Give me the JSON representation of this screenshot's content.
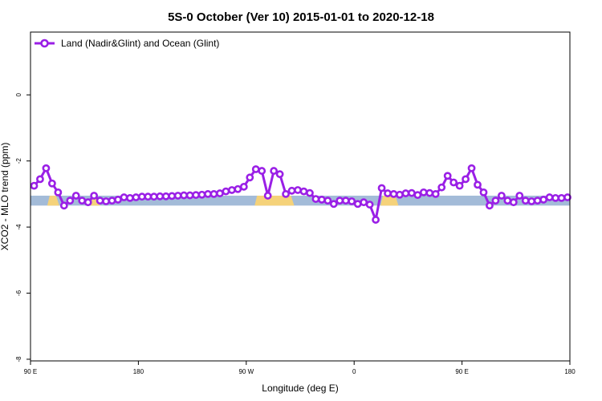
{
  "chart_data": {
    "type": "line",
    "title": "5S-0 October (Ver 10)   2015-01-01 to 2020-12-18",
    "xlabel": "Longitude (deg E)",
    "ylabel": "XCO2 - MLO trend (ppm)",
    "xlim": [
      90,
      540
    ],
    "ylim": [
      -8.05,
      1.9
    ],
    "x_ticks": [
      {
        "value": 90,
        "label": "90 E"
      },
      {
        "value": 180,
        "label": "180"
      },
      {
        "value": 270,
        "label": "90 W"
      },
      {
        "value": 360,
        "label": "0"
      },
      {
        "value": 450,
        "label": "90 E"
      },
      {
        "value": 540,
        "label": "180"
      }
    ],
    "y_ticks": [
      0,
      -2,
      -4,
      -6,
      -8
    ],
    "grid": false,
    "legend_position": "top-left",
    "colors": {
      "series": "#9a1fe6",
      "ocean": "#a3bbd8",
      "land": "#f5d27a"
    },
    "surface_strip": {
      "y_top": -3.05,
      "y_bottom": -3.35,
      "land_x_ranges": [
        [
          104,
          114
        ],
        [
          140,
          148
        ],
        [
          277,
          310
        ],
        [
          382,
          397
        ]
      ]
    },
    "series": [
      {
        "name": "Land (Nadir&Glint) and Ocean (Glint)",
        "x": [
          93,
          98,
          103,
          108,
          113,
          118,
          123,
          128,
          133,
          138,
          143,
          148,
          153,
          158,
          163,
          168,
          173,
          178,
          183,
          188,
          193,
          198,
          203,
          208,
          213,
          218,
          223,
          228,
          233,
          238,
          243,
          248,
          253,
          258,
          263,
          268,
          273,
          278,
          283,
          288,
          293,
          298,
          303,
          308,
          313,
          318,
          323,
          328,
          333,
          338,
          343,
          348,
          353,
          358,
          363,
          368,
          373,
          378,
          383,
          388,
          393,
          398,
          403,
          408,
          413,
          418,
          423,
          428,
          433,
          438,
          443,
          448,
          453,
          458,
          463,
          468,
          473,
          478,
          483,
          488,
          493,
          498,
          503,
          508,
          513,
          518,
          523,
          528,
          533,
          538
        ],
        "values": [
          -2.75,
          -2.55,
          -2.22,
          -2.68,
          -2.95,
          -3.35,
          -3.2,
          -3.05,
          -3.2,
          -3.25,
          -3.05,
          -3.2,
          -3.22,
          -3.2,
          -3.17,
          -3.1,
          -3.12,
          -3.1,
          -3.08,
          -3.08,
          -3.08,
          -3.07,
          -3.07,
          -3.06,
          -3.05,
          -3.04,
          -3.04,
          -3.03,
          -3.02,
          -3.0,
          -3.0,
          -2.98,
          -2.92,
          -2.88,
          -2.85,
          -2.78,
          -2.5,
          -2.25,
          -2.3,
          -3.05,
          -2.3,
          -2.4,
          -3.0,
          -2.9,
          -2.88,
          -2.92,
          -2.97,
          -3.15,
          -3.17,
          -3.2,
          -3.3,
          -3.2,
          -3.2,
          -3.22,
          -3.3,
          -3.25,
          -3.32,
          -3.78,
          -2.82,
          -2.98,
          -3.0,
          -3.02,
          -2.98,
          -2.97,
          -3.03,
          -2.95,
          -2.97,
          -3.0,
          -2.8,
          -2.45,
          -2.65,
          -2.75,
          -2.55,
          -2.22,
          -2.72,
          -2.95,
          -3.35,
          -3.2,
          -3.05,
          -3.2,
          -3.25,
          -3.05,
          -3.2,
          -3.22,
          -3.2,
          -3.17,
          -3.1,
          -3.12,
          -3.12,
          -3.1
        ]
      }
    ]
  }
}
